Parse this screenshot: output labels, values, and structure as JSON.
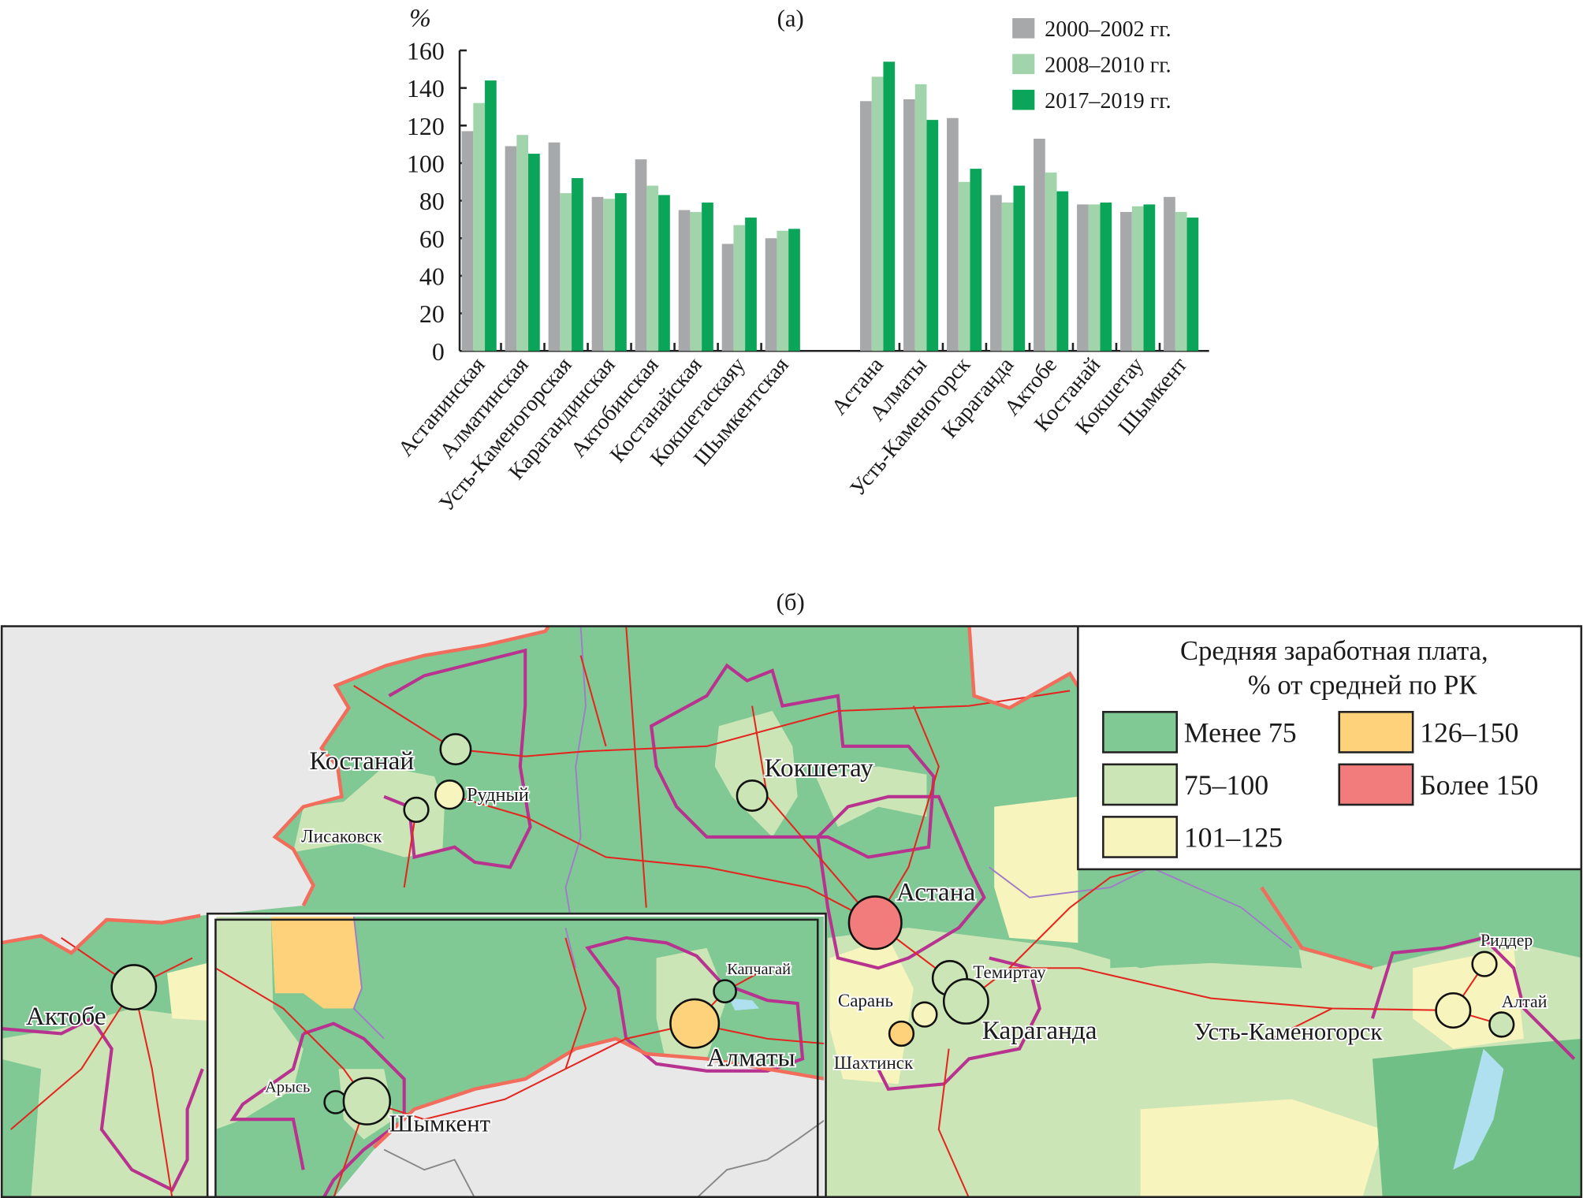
{
  "chart_data": {
    "type": "bar",
    "title": "(а)",
    "ylabel": "%",
    "xlabel": "",
    "ylim": [
      0,
      160
    ],
    "yticks": [
      0,
      20,
      40,
      60,
      80,
      100,
      120,
      140,
      160
    ],
    "grid": false,
    "legend_position": "top-right",
    "categories": [
      "Астанинская",
      "Алматинская",
      "Усть-Каменогорская",
      "Карагандинская",
      "Актобинская",
      "Костанайская",
      "Кокшетаскаяу",
      "Шымкентская",
      "Астана",
      "Алматы",
      "Усть-Каменогорск",
      "Караганда",
      "Актобе",
      "Костанай",
      "Кокшетау",
      "Шымкент"
    ],
    "series": [
      {
        "name": "2000–2002 гг.",
        "color": "#a6a8aa",
        "values": [
          117,
          109,
          111,
          82,
          102,
          75,
          57,
          60,
          133,
          134,
          124,
          83,
          113,
          78,
          74,
          82
        ]
      },
      {
        "name": "2008–2010 гг.",
        "color": "#a2d4ac",
        "values": [
          132,
          115,
          84,
          81,
          88,
          74,
          67,
          64,
          146,
          142,
          90,
          79,
          95,
          78,
          77,
          74
        ]
      },
      {
        "name": "2017–2019 гг.",
        "color": "#0ba55a",
        "values": [
          144,
          105,
          92,
          84,
          83,
          79,
          71,
          65,
          154,
          123,
          97,
          88,
          85,
          79,
          78,
          71
        ]
      }
    ]
  },
  "map": {
    "panel_label": "(б)",
    "legend": {
      "title_line1": "Средняя заработная плата,",
      "title_line2": "% от средней по РК",
      "classes": [
        {
          "label": "Менее 75",
          "color": "#80c894"
        },
        {
          "label": "75–100",
          "color": "#cce5b6"
        },
        {
          "label": "101–125",
          "color": "#f8f4bd"
        },
        {
          "label": "126–150",
          "color": "#fdd27a"
        },
        {
          "label": "Более 150",
          "color": "#f27c7b"
        }
      ]
    },
    "cities": [
      {
        "name": "Костанай",
        "class": 1
      },
      {
        "name": "Рудный",
        "class": 2
      },
      {
        "name": "Лисаковск",
        "class": 1
      },
      {
        "name": "Кокшетау",
        "class": 1
      },
      {
        "name": "Астана",
        "class": 4
      },
      {
        "name": "Темиртау",
        "class": 1
      },
      {
        "name": "Караганда",
        "class": 1
      },
      {
        "name": "Сарань",
        "class": 2
      },
      {
        "name": "Шахтинск",
        "class": 3
      },
      {
        "name": "Актобе",
        "class": 1
      },
      {
        "name": "Капчагай",
        "class": 0
      },
      {
        "name": "Алматы",
        "class": 3
      },
      {
        "name": "Арысь",
        "class": 0
      },
      {
        "name": "Шымкент",
        "class": 1
      },
      {
        "name": "Риддер",
        "class": 2
      },
      {
        "name": "Алтай",
        "class": 1
      },
      {
        "name": "Усть-Каменогорск",
        "class": 2
      }
    ]
  }
}
